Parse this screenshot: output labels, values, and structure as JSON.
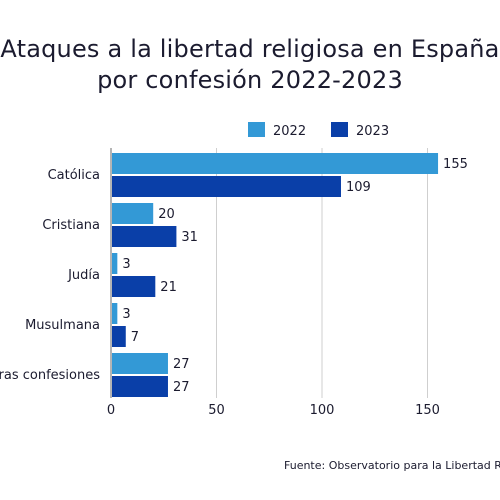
{
  "chart_data": {
    "type": "bar",
    "orientation": "horizontal",
    "title_line1": "Ataques a la libertad religiosa en España",
    "title_line2": "por confesión 2022-2023",
    "categories": [
      "Católica",
      "Cristiana",
      "Judía",
      "Musulmana",
      "Otras confesiones"
    ],
    "series": [
      {
        "name": "2022",
        "values": [
          155,
          20,
          3,
          3,
          27
        ],
        "color": "#3399d6"
      },
      {
        "name": "2023",
        "values": [
          109,
          31,
          21,
          7,
          27
        ],
        "color": "#0a3fa8"
      }
    ],
    "xlim": [
      0,
      160
    ],
    "xticks": [
      "0",
      "50",
      "100",
      "150"
    ],
    "grid": true,
    "legend_position": "top"
  },
  "source": "Fuente: Observatorio para la Libertad Religiosa"
}
